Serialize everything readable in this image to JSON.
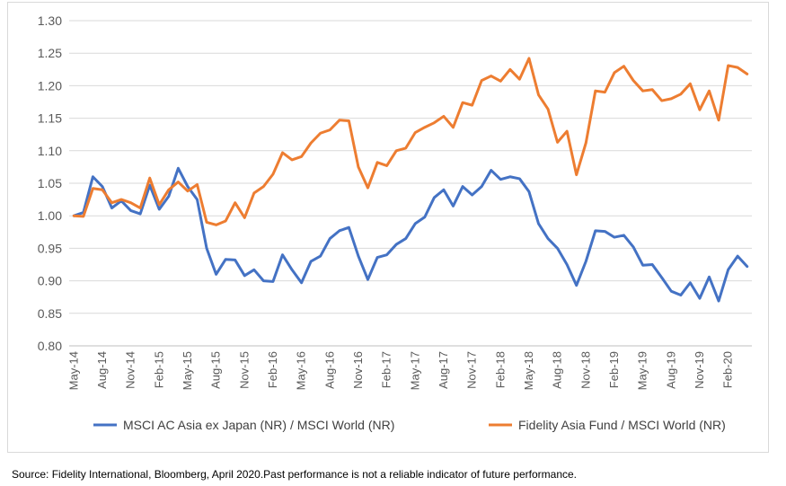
{
  "chart_data": {
    "type": "line",
    "title": "",
    "xlabel": "",
    "ylabel": "",
    "ylim": [
      0.8,
      1.3
    ],
    "y_ticks": [
      "0.80",
      "0.85",
      "0.90",
      "0.95",
      "1.00",
      "1.05",
      "1.10",
      "1.15",
      "1.20",
      "1.25",
      "1.30"
    ],
    "grid": "horizontal",
    "legend_position": "bottom",
    "x": [
      "May-14",
      "Jun-14",
      "Jul-14",
      "Aug-14",
      "Sep-14",
      "Oct-14",
      "Nov-14",
      "Dec-14",
      "Jan-15",
      "Feb-15",
      "Mar-15",
      "Apr-15",
      "May-15",
      "Jun-15",
      "Jul-15",
      "Aug-15",
      "Sep-15",
      "Oct-15",
      "Nov-15",
      "Dec-15",
      "Jan-16",
      "Feb-16",
      "Mar-16",
      "Apr-16",
      "May-16",
      "Jun-16",
      "Jul-16",
      "Aug-16",
      "Sep-16",
      "Oct-16",
      "Nov-16",
      "Dec-16",
      "Jan-17",
      "Feb-17",
      "Mar-17",
      "Apr-17",
      "May-17",
      "Jun-17",
      "Jul-17",
      "Aug-17",
      "Sep-17",
      "Oct-17",
      "Nov-17",
      "Dec-17",
      "Jan-18",
      "Feb-18",
      "Mar-18",
      "Apr-18",
      "May-18",
      "Jun-18",
      "Jul-18",
      "Aug-18",
      "Sep-18",
      "Oct-18",
      "Nov-18",
      "Dec-18",
      "Jan-19",
      "Feb-19",
      "Mar-19",
      "Apr-19",
      "May-19",
      "Jun-19",
      "Jul-19",
      "Aug-19",
      "Sep-19",
      "Oct-19",
      "Nov-19",
      "Dec-19",
      "Jan-20",
      "Feb-20",
      "Mar-20",
      "Apr-20"
    ],
    "x_tick_labels": [
      "May-14",
      "Aug-14",
      "Nov-14",
      "Feb-15",
      "May-15",
      "Aug-15",
      "Nov-15",
      "Feb-16",
      "May-16",
      "Aug-16",
      "Nov-16",
      "Feb-17",
      "May-17",
      "Aug-17",
      "Nov-17",
      "Feb-18",
      "May-18",
      "Aug-18",
      "Nov-18",
      "Feb-19",
      "May-19",
      "Aug-19",
      "Nov-19",
      "Feb-20"
    ],
    "series": [
      {
        "name": "MSCI AC Asia ex Japan (NR) / MSCI World (NR)",
        "color": "#4472c4",
        "values": [
          1.0,
          1.005,
          1.06,
          1.045,
          1.012,
          1.023,
          1.008,
          1.003,
          1.047,
          1.01,
          1.03,
          1.073,
          1.045,
          1.025,
          0.95,
          0.91,
          0.933,
          0.932,
          0.908,
          0.917,
          0.9,
          0.899,
          0.94,
          0.917,
          0.897,
          0.93,
          0.938,
          0.965,
          0.977,
          0.982,
          0.938,
          0.902,
          0.936,
          0.94,
          0.956,
          0.965,
          0.988,
          0.998,
          1.028,
          1.04,
          1.015,
          1.045,
          1.032,
          1.045,
          1.07,
          1.056,
          1.06,
          1.057,
          1.037,
          0.988,
          0.965,
          0.95,
          0.925,
          0.893,
          0.93,
          0.977,
          0.976,
          0.967,
          0.97,
          0.952,
          0.924,
          0.925,
          0.905,
          0.884,
          0.878,
          0.897,
          0.873,
          0.906,
          0.869,
          0.917,
          0.938,
          0.922
        ]
      },
      {
        "name": "Fidelity Asia Fund / MSCI World (NR)",
        "color": "#ed7d31",
        "values": [
          1.0,
          0.999,
          1.042,
          1.04,
          1.02,
          1.025,
          1.02,
          1.012,
          1.058,
          1.017,
          1.04,
          1.052,
          1.038,
          1.048,
          0.99,
          0.986,
          0.992,
          1.02,
          0.997,
          1.035,
          1.045,
          1.064,
          1.097,
          1.086,
          1.091,
          1.112,
          1.127,
          1.132,
          1.147,
          1.146,
          1.075,
          1.043,
          1.082,
          1.077,
          1.1,
          1.104,
          1.128,
          1.136,
          1.143,
          1.153,
          1.136,
          1.174,
          1.17,
          1.208,
          1.215,
          1.207,
          1.225,
          1.21,
          1.242,
          1.186,
          1.164,
          1.113,
          1.13,
          1.063,
          1.112,
          1.192,
          1.19,
          1.22,
          1.23,
          1.208,
          1.192,
          1.194,
          1.177,
          1.18,
          1.187,
          1.203,
          1.163,
          1.192,
          1.147,
          1.231,
          1.228,
          1.218
        ]
      }
    ]
  },
  "source_note": "Source: Fidelity International, Bloomberg, April 2020.Past performance is not a reliable indicator of future performance."
}
